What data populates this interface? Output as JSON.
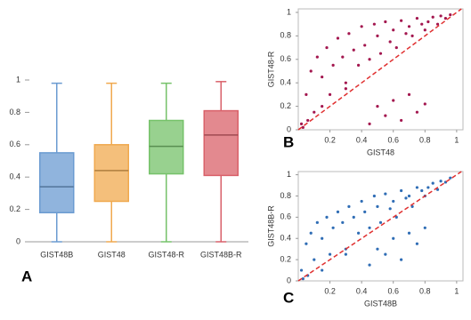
{
  "chart_data": [
    {
      "type": "box",
      "letter": "A",
      "categories": [
        "GIST48B",
        "GIST48",
        "GIST48-R",
        "GIST48B-R"
      ],
      "boxes": [
        {
          "min": 0,
          "q1": 0.18,
          "median": 0.34,
          "q3": 0.55,
          "max": 0.98,
          "color": "#6b9bd1"
        },
        {
          "min": 0,
          "q1": 0.25,
          "median": 0.44,
          "q3": 0.6,
          "max": 0.98,
          "color": "#f0a94f"
        },
        {
          "min": 0,
          "q1": 0.42,
          "median": 0.59,
          "q3": 0.75,
          "max": 0.98,
          "color": "#76c26a"
        },
        {
          "min": 0,
          "q1": 0.41,
          "median": 0.66,
          "q3": 0.81,
          "max": 0.99,
          "color": "#d9616a"
        }
      ],
      "ylim": [
        0,
        1
      ],
      "yticks": [
        0,
        0.2,
        0.4,
        0.6,
        0.8,
        1
      ]
    },
    {
      "type": "scatter",
      "letter": "B",
      "x_label": "GIST48",
      "y_label": "GIST48-R",
      "color": "#a3174f",
      "x": [
        0.02,
        0.05,
        0.08,
        0.1,
        0.12,
        0.15,
        0.18,
        0.2,
        0.22,
        0.25,
        0.28,
        0.3,
        0.32,
        0.35,
        0.38,
        0.4,
        0.42,
        0.45,
        0.48,
        0.5,
        0.52,
        0.55,
        0.58,
        0.6,
        0.62,
        0.65,
        0.68,
        0.7,
        0.72,
        0.75,
        0.78,
        0.8,
        0.82,
        0.85,
        0.88,
        0.9,
        0.93,
        0.96,
        0.45,
        0.5,
        0.55,
        0.6,
        0.65,
        0.7,
        0.75,
        0.8,
        0.03,
        0.06,
        0.15,
        0.3
      ],
      "y": [
        0.05,
        0.3,
        0.5,
        0.15,
        0.62,
        0.45,
        0.7,
        0.3,
        0.55,
        0.78,
        0.62,
        0.4,
        0.82,
        0.68,
        0.55,
        0.88,
        0.72,
        0.6,
        0.9,
        0.8,
        0.65,
        0.92,
        0.75,
        0.85,
        0.7,
        0.93,
        0.82,
        0.88,
        0.8,
        0.95,
        0.9,
        0.85,
        0.92,
        0.96,
        0.9,
        0.97,
        0.95,
        0.98,
        0.05,
        0.2,
        0.12,
        0.25,
        0.08,
        0.3,
        0.15,
        0.22,
        0.02,
        0.08,
        0.2,
        0.35
      ],
      "xlim": [
        0,
        1.04
      ],
      "ylim": [
        0,
        1.03
      ],
      "xticks": [
        0.2,
        0.4,
        0.6,
        0.8,
        1
      ],
      "yticks": [
        0,
        0.2,
        0.4,
        0.6,
        0.8,
        1
      ]
    },
    {
      "type": "scatter",
      "letter": "C",
      "x_label": "GIST48B",
      "y_label": "GIST48B-R",
      "color": "#2f6db5",
      "x": [
        0.02,
        0.05,
        0.08,
        0.1,
        0.12,
        0.15,
        0.18,
        0.2,
        0.22,
        0.25,
        0.28,
        0.3,
        0.32,
        0.35,
        0.38,
        0.4,
        0.42,
        0.45,
        0.48,
        0.5,
        0.52,
        0.55,
        0.58,
        0.6,
        0.62,
        0.65,
        0.68,
        0.7,
        0.72,
        0.75,
        0.78,
        0.8,
        0.82,
        0.85,
        0.88,
        0.9,
        0.93,
        0.96,
        0.45,
        0.5,
        0.55,
        0.6,
        0.65,
        0.7,
        0.75,
        0.8,
        0.03,
        0.06,
        0.15,
        0.3
      ],
      "y": [
        0.1,
        0.35,
        0.45,
        0.2,
        0.55,
        0.4,
        0.6,
        0.25,
        0.5,
        0.65,
        0.55,
        0.3,
        0.7,
        0.6,
        0.45,
        0.75,
        0.65,
        0.5,
        0.8,
        0.7,
        0.55,
        0.82,
        0.68,
        0.75,
        0.6,
        0.85,
        0.78,
        0.8,
        0.7,
        0.88,
        0.85,
        0.8,
        0.88,
        0.92,
        0.86,
        0.94,
        0.93,
        0.97,
        0.15,
        0.3,
        0.25,
        0.4,
        0.2,
        0.45,
        0.35,
        0.5,
        0.02,
        0.05,
        0.1,
        0.25
      ],
      "xlim": [
        0,
        1.04
      ],
      "ylim": [
        0,
        1.03
      ],
      "xticks": [
        0.2,
        0.4,
        0.6,
        0.8,
        1
      ],
      "yticks": [
        0,
        0.2,
        0.4,
        0.6,
        0.8,
        1
      ]
    }
  ]
}
